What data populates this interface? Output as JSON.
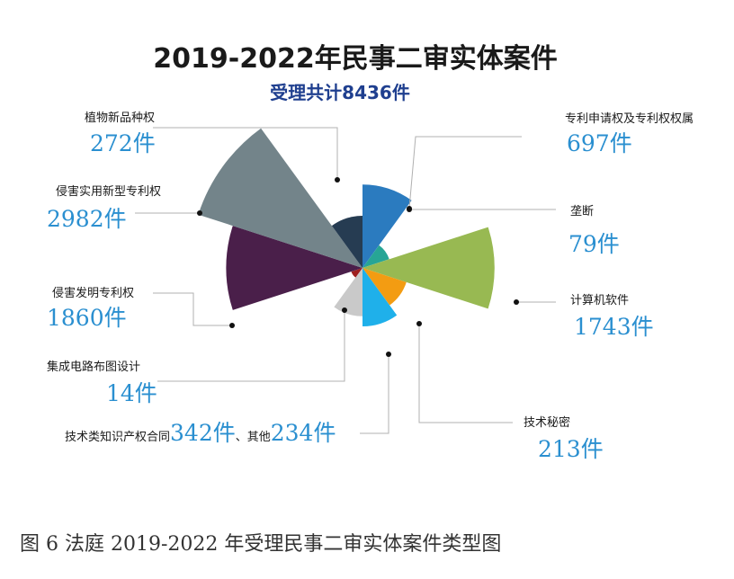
{
  "chart_data": {
    "type": "pie",
    "variant": "rose",
    "title": "2019-2022年民事二审实体案件",
    "subtitle": "受理共计8436件",
    "total": 8436,
    "slices": [
      {
        "label": "专利申请权及专利权权属",
        "value": 697,
        "value_text": "697件",
        "color": "#2b7bbf"
      },
      {
        "label": "垄断",
        "value": 79,
        "value_text": "79件",
        "color": "#27a595"
      },
      {
        "label": "计算机软件",
        "value": 1743,
        "value_text": "1743件",
        "color": "#98b952"
      },
      {
        "label": "技术秘密",
        "value": 213,
        "value_text": "213件",
        "color": "#f39c12"
      },
      {
        "label": "技术类知识产权合同",
        "value": 342,
        "value_text": "342件",
        "color": "#1fb0ea"
      },
      {
        "label": "其他",
        "value": 234,
        "value_text": "234件",
        "color": "#c9c9c9"
      },
      {
        "label": "集成电路布图设计",
        "value": 14,
        "value_text": "14件",
        "color": "#9e1f1f"
      },
      {
        "label": "侵害发明专利权",
        "value": 1860,
        "value_text": "1860件",
        "color": "#4a1f4a"
      },
      {
        "label": "侵害实用新型专利权",
        "value": 2982,
        "value_text": "2982件",
        "color": "#73848a"
      },
      {
        "label": "植物新品种权",
        "value": 272,
        "value_text": "272件",
        "color": "#263c52"
      }
    ],
    "combined_label": {
      "prefix": "技术类知识产权合同",
      "value1": "342件",
      "sep": "、其他",
      "value2": "234件"
    }
  },
  "caption": "图 6   法庭 2019-2022 年受理民事二审实体案件类型图"
}
